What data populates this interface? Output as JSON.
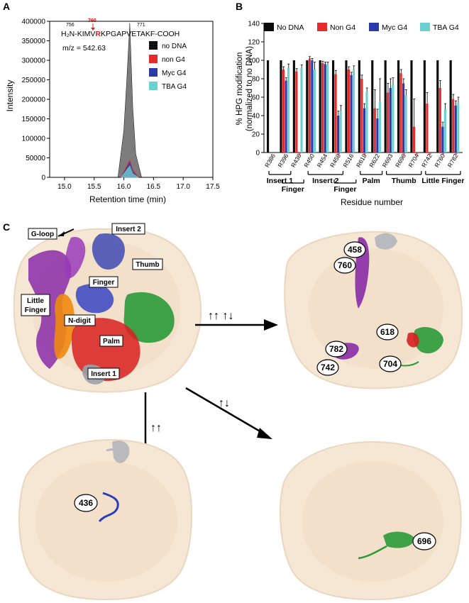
{
  "figure": {
    "panel_labels": [
      "A",
      "B",
      "C"
    ]
  },
  "panelA": {
    "peptide_left": "H₂N-KIMV",
    "peptide_highlight": "R",
    "peptide_right": "KPGAPVETAKF-COOH",
    "pos_756": "756",
    "pos_760": "760",
    "pos_771": "771",
    "mz": "m/z = 542.63",
    "ylabel": "Intensity",
    "xlabel": "Retention time (min)",
    "yticks": [
      "0",
      "50000",
      "100000",
      "150000",
      "200000",
      "250000",
      "300000",
      "350000",
      "400000"
    ],
    "xticks": [
      "15.0",
      "15.5",
      "16.0",
      "16.5",
      "17.0",
      "17.5"
    ],
    "legend": [
      "no DNA",
      "non G4",
      "Myc G4",
      "TBA G4"
    ]
  },
  "panelB": {
    "ylabel1": "% HPG modification",
    "ylabel2": "(normalized  to no DNA)",
    "xlabel": "Residue number",
    "yticks": [
      "0",
      "20",
      "40",
      "60",
      "80",
      "100",
      "120",
      "140"
    ],
    "legend": [
      "No DNA",
      "Non G4",
      "Myc G4",
      "TBA G4"
    ],
    "groups": [
      "Insert 1",
      "Finger",
      "Insert 2",
      "Finger",
      "Palm",
      "Thumb",
      "Little Finger"
    ]
  },
  "panelC": {
    "domain_labels": {
      "gloop": "G-loop",
      "insert2": "Insert 2",
      "finger": "Finger",
      "thumb": "Thumb",
      "little_finger_1": "Little",
      "little_finger_2": "Finger",
      "ndigit": "N-digit",
      "palm": "Palm",
      "insert1": "Insert 1"
    },
    "arrow_labels": {
      "right": "↑↑   ↑↓",
      "down": "↑↑",
      "diag": "↑↓"
    },
    "tr_residues": [
      "458",
      "760",
      "782",
      "742",
      "618",
      "704"
    ],
    "bl_residue": "436",
    "br_residue": "696"
  },
  "chart_data": [
    {
      "type": "area",
      "title": "",
      "xlabel": "Retention time (min)",
      "ylabel": "Intensity",
      "xlim": [
        14.75,
        17.5
      ],
      "ylim": [
        0,
        400000
      ],
      "series": [
        {
          "name": "no DNA",
          "x": [
            15.9,
            16.0,
            16.05,
            16.1,
            16.15,
            16.2,
            16.3
          ],
          "values": [
            0,
            120000,
            250000,
            395000,
            180000,
            60000,
            0
          ]
        },
        {
          "name": "non G4",
          "x": [
            15.95,
            16.05,
            16.1,
            16.15,
            16.25
          ],
          "values": [
            0,
            30000,
            45000,
            20000,
            0
          ]
        },
        {
          "name": "Myc G4",
          "x": [
            15.95,
            16.05,
            16.1,
            16.15,
            16.25
          ],
          "values": [
            0,
            25000,
            40000,
            15000,
            0
          ]
        },
        {
          "name": "TBA G4",
          "x": [
            15.95,
            16.05,
            16.1,
            16.15,
            16.25
          ],
          "values": [
            0,
            20000,
            30000,
            10000,
            0
          ]
        }
      ]
    },
    {
      "type": "bar",
      "title": "",
      "xlabel": "Residue number",
      "ylabel": "% HPG modification (normalized  to no DNA)",
      "ylim": [
        0,
        140
      ],
      "categories": [
        "R386",
        "R396",
        "R436",
        "R450",
        "R454",
        "R458",
        "R516",
        "R618",
        "R622",
        "R693",
        "R696",
        "R704",
        "R742",
        "R760",
        "R782"
      ],
      "starred": [
        "R436",
        "R458",
        "R618",
        "R696",
        "R704",
        "R742",
        "R760",
        "R782"
      ],
      "series": [
        {
          "name": "No DNA",
          "values": [
            100,
            100,
            100,
            100,
            100,
            100,
            100,
            100,
            100,
            100,
            100,
            100,
            100,
            100,
            100
          ]
        },
        {
          "name": "Non G4",
          "values": [
            0,
            90,
            88,
            102,
            97,
            85,
            90,
            80,
            48,
            65,
            86,
            28,
            53,
            70,
            58
          ]
        },
        {
          "name": "Myc G4",
          "values": [
            0,
            78,
            0,
            100,
            96,
            40,
            84,
            48,
            37,
            70,
            75,
            0,
            0,
            28,
            51
          ]
        },
        {
          "name": "TBA G4",
          "values": [
            0,
            92,
            92,
            90,
            95,
            45,
            90,
            66,
            55,
            73,
            62,
            0,
            0,
            47,
            54
          ]
        }
      ],
      "errors": [
        {
          "name": "Non G4",
          "values": [
            0,
            3,
            3,
            2,
            2,
            4,
            3,
            4,
            20,
            10,
            4,
            30,
            12,
            8,
            5
          ]
        },
        {
          "name": "Myc G4",
          "values": [
            0,
            3,
            0,
            2,
            2,
            5,
            3,
            5,
            10,
            10,
            5,
            0,
            0,
            5,
            5
          ]
        },
        {
          "name": "TBA G4",
          "values": [
            0,
            4,
            3,
            8,
            3,
            6,
            4,
            4,
            25,
            8,
            6,
            0,
            0,
            6,
            6
          ]
        }
      ]
    }
  ]
}
